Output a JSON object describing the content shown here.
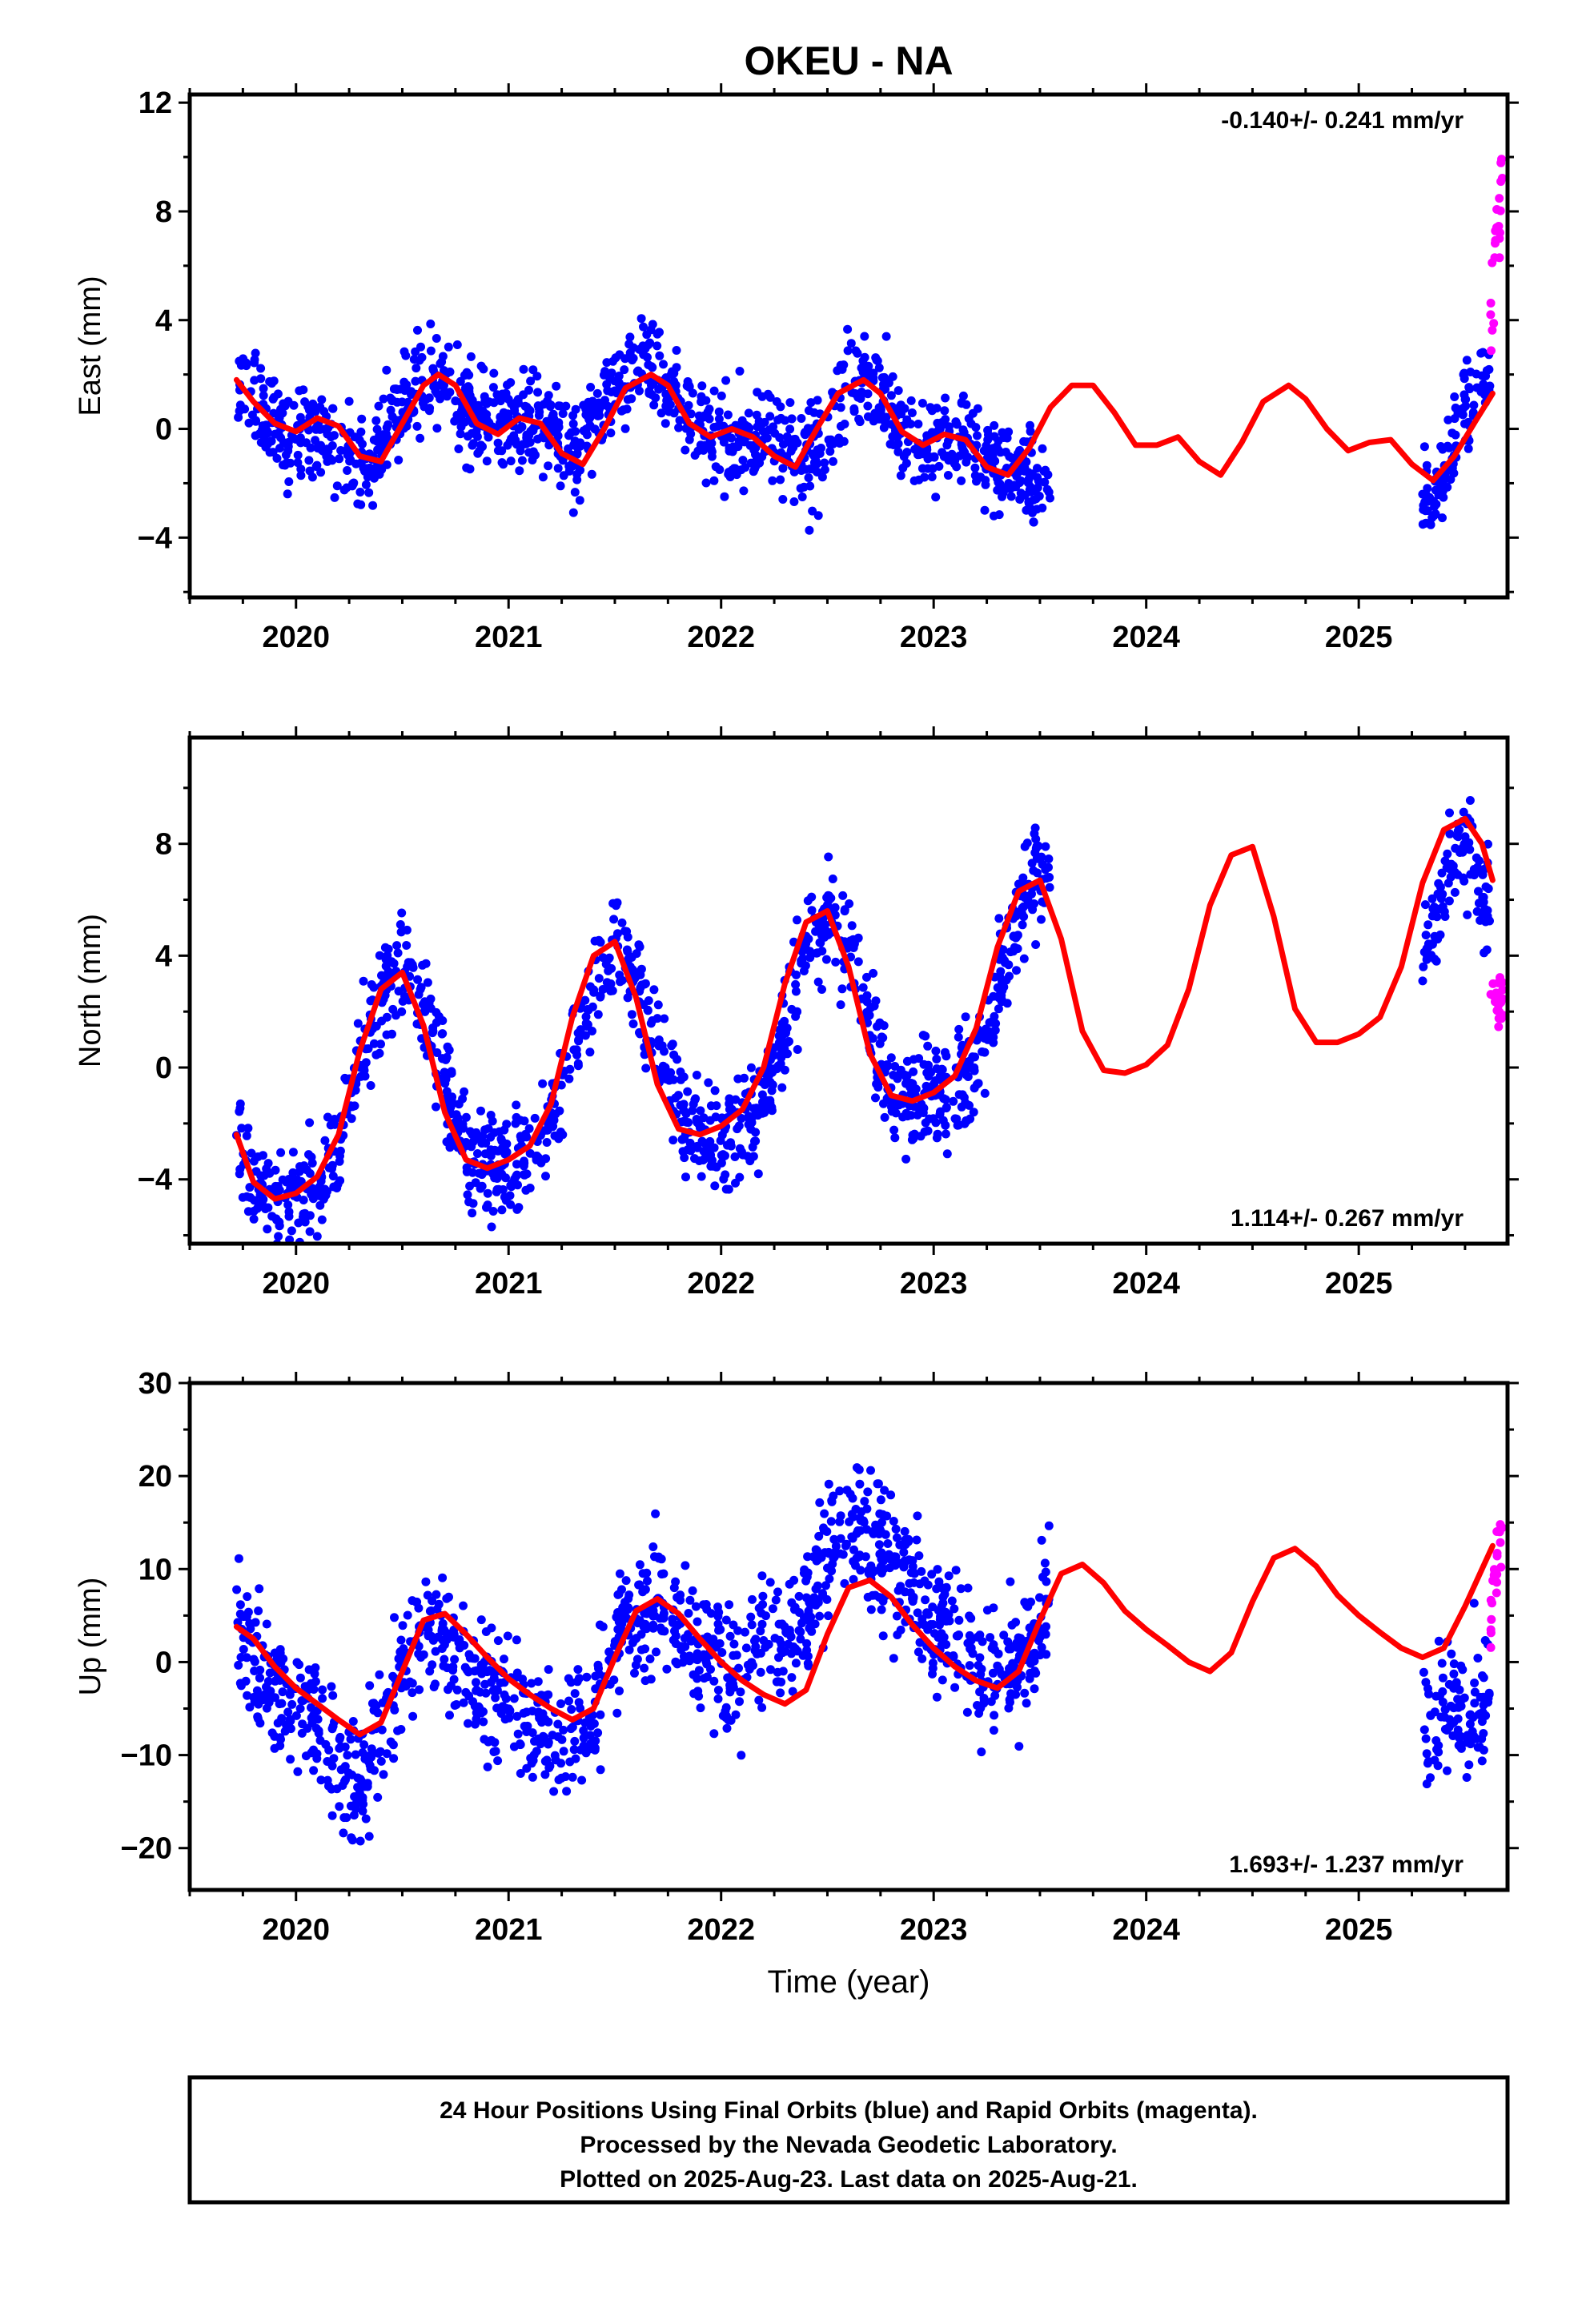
{
  "title": "OKEU - NA",
  "colors": {
    "final": "#0000ff",
    "rapid": "#ff00ff",
    "model": "#ff0000",
    "axis": "#000000"
  },
  "xlabel": "Time (year)",
  "footer": {
    "line1": "24 Hour Positions Using Final Orbits (blue) and Rapid Orbits (magenta).",
    "line2": "Processed by the Nevada Geodetic Laboratory.",
    "line3": "Plotted on 2025-Aug-23. Last data on 2025-Aug-21."
  },
  "chart_data": [
    {
      "type": "scatter",
      "ylabel": "East (mm)",
      "rate": "-0.140+/- 0.241 mm/yr",
      "rate_position": "top-right",
      "xlim": [
        2019.5,
        2025.7
      ],
      "ylim": [
        -6.2,
        12.3
      ],
      "xticks": [
        2020,
        2021,
        2022,
        2023,
        2024,
        2025
      ],
      "yticks": [
        -4,
        0,
        4,
        8,
        12
      ],
      "grid": false,
      "final_segments": [
        [
          2019.72,
          2023.55
        ],
        [
          2025.3,
          2025.62
        ]
      ],
      "gap": [
        2023.55,
        2025.3
      ],
      "rapid_x": [
        2025.62,
        2025.68
      ],
      "series": [
        {
          "key": "final",
          "x": [
            2019.72,
            2019.8,
            2019.88,
            2019.96,
            2020.04,
            2020.12,
            2020.2,
            2020.28,
            2020.36,
            2020.44,
            2020.52,
            2020.6,
            2020.68,
            2020.76,
            2020.84,
            2020.92,
            2021.0,
            2021.08,
            2021.16,
            2021.24,
            2021.32,
            2021.4,
            2021.48,
            2021.56,
            2021.64,
            2021.72,
            2021.8,
            2021.88,
            2021.96,
            2022.04,
            2022.12,
            2022.2,
            2022.28,
            2022.36,
            2022.44,
            2022.52,
            2022.6,
            2022.68,
            2022.76,
            2022.84,
            2022.92,
            2023.0,
            2023.08,
            2023.16,
            2023.24,
            2023.32,
            2023.4,
            2023.48,
            2023.55,
            2025.3,
            2025.35,
            2025.4,
            2025.45,
            2025.5,
            2025.55,
            2025.6
          ],
          "values": [
            1.5,
            1.0,
            0.0,
            -0.5,
            0.2,
            -0.4,
            -1.0,
            -1.0,
            -1.3,
            0.5,
            1.2,
            1.7,
            1.8,
            1.0,
            0.5,
            0.4,
            0.2,
            0.3,
            0.3,
            -0.4,
            -1.0,
            0.5,
            1.0,
            1.8,
            2.5,
            1.8,
            0.9,
            0.3,
            -0.2,
            -0.4,
            -0.4,
            -0.3,
            -0.2,
            -1.0,
            -1.3,
            0.2,
            1.7,
            2.2,
            1.4,
            -0.2,
            -0.8,
            -0.5,
            -0.3,
            -0.5,
            -1.3,
            -1.5,
            -1.5,
            -2.0,
            -2.5,
            -2.5,
            -3.0,
            -1.5,
            -0.5,
            0.8,
            1.2,
            2.0
          ],
          "spread": 1.2
        },
        {
          "key": "rapid",
          "x": [
            2025.62,
            2025.64,
            2025.66,
            2025.68
          ],
          "values": [
            4.0,
            6.0,
            7.5,
            9.5
          ],
          "spread": 1.2
        },
        {
          "key": "model",
          "x": [
            2019.72,
            2019.8,
            2019.9,
            2020.0,
            2020.1,
            2020.2,
            2020.3,
            2020.4,
            2020.5,
            2020.6,
            2020.67,
            2020.75,
            2020.85,
            2020.95,
            2021.05,
            2021.15,
            2021.25,
            2021.35,
            2021.45,
            2021.55,
            2021.67,
            2021.75,
            2021.85,
            2021.95,
            2022.05,
            2022.15,
            2022.25,
            2022.35,
            2022.45,
            2022.55,
            2022.67,
            2022.75,
            2022.85,
            2022.95,
            2023.05,
            2023.15,
            2023.25,
            2023.35,
            2023.45,
            2023.55,
            2023.65,
            2023.75,
            2023.85,
            2023.95,
            2024.05,
            2024.15,
            2024.25,
            2024.35,
            2024.45,
            2024.55,
            2024.67,
            2024.75,
            2024.85,
            2024.95,
            2025.05,
            2025.15,
            2025.25,
            2025.35,
            2025.45,
            2025.55,
            2025.63
          ],
          "values": [
            1.8,
            1.0,
            0.2,
            -0.1,
            0.4,
            0.1,
            -1.0,
            -1.2,
            0.2,
            1.6,
            2.0,
            1.6,
            0.2,
            -0.2,
            0.4,
            0.2,
            -0.9,
            -1.3,
            0.0,
            1.5,
            2.0,
            1.6,
            0.2,
            -0.3,
            0.0,
            -0.3,
            -1.0,
            -1.4,
            0.0,
            1.3,
            1.8,
            1.3,
            -0.1,
            -0.6,
            -0.2,
            -0.4,
            -1.4,
            -1.7,
            -0.7,
            0.8,
            1.6,
            1.6,
            0.6,
            -0.6,
            -0.6,
            -0.3,
            -1.2,
            -1.7,
            -0.5,
            1.0,
            1.6,
            1.1,
            0.0,
            -0.8,
            -0.5,
            -0.4,
            -1.3,
            -1.9,
            -1.0,
            0.3,
            1.3
          ]
        }
      ]
    },
    {
      "type": "scatter",
      "ylabel": "North (mm)",
      "rate": "1.114+/- 0.267 mm/yr",
      "rate_position": "bottom-right",
      "xlim": [
        2019.5,
        2025.7
      ],
      "ylim": [
        -6.3,
        11.8
      ],
      "xticks": [
        2020,
        2021,
        2022,
        2023,
        2024,
        2025
      ],
      "yticks": [
        -4,
        0,
        4,
        8
      ],
      "grid": false,
      "final_segments": [
        [
          2019.72,
          2023.55
        ],
        [
          2025.3,
          2025.62
        ]
      ],
      "gap": [
        2023.55,
        2025.3
      ],
      "rapid_x": [
        2025.62,
        2025.68
      ],
      "series": [
        {
          "key": "final",
          "x": [
            2019.72,
            2019.8,
            2019.9,
            2020.0,
            2020.1,
            2020.2,
            2020.3,
            2020.4,
            2020.5,
            2020.6,
            2020.7,
            2020.8,
            2020.9,
            2021.0,
            2021.1,
            2021.2,
            2021.3,
            2021.4,
            2021.5,
            2021.6,
            2021.7,
            2021.8,
            2021.9,
            2022.0,
            2022.1,
            2022.2,
            2022.3,
            2022.4,
            2022.5,
            2022.6,
            2022.7,
            2022.8,
            2022.9,
            2023.0,
            2023.1,
            2023.2,
            2023.3,
            2023.4,
            2023.5,
            2023.55,
            2025.3,
            2025.35,
            2025.4,
            2025.45,
            2025.5,
            2025.55,
            2025.6
          ],
          "values": [
            -2.2,
            -3.8,
            -4.6,
            -4.5,
            -4.0,
            -2.8,
            0.2,
            2.5,
            3.6,
            2.3,
            -0.5,
            -2.8,
            -3.6,
            -3.5,
            -3.2,
            -2.0,
            0.5,
            3.0,
            4.3,
            3.3,
            0.8,
            -1.5,
            -2.5,
            -2.6,
            -2.3,
            -1.5,
            1.5,
            4.5,
            5.6,
            4.2,
            1.5,
            -0.8,
            -1.3,
            -1.0,
            -0.8,
            0.2,
            2.5,
            5.5,
            7.0,
            6.8,
            4.0,
            5.0,
            6.5,
            7.5,
            8.0,
            7.0,
            6.0
          ],
          "spread": 1.3
        },
        {
          "key": "rapid",
          "x": [
            2025.62,
            2025.64,
            2025.66,
            2025.68
          ],
          "values": [
            2.8,
            2.2,
            2.0,
            2.5
          ],
          "spread": 0.6
        },
        {
          "key": "model",
          "x": [
            2019.72,
            2019.8,
            2019.9,
            2020.0,
            2020.1,
            2020.2,
            2020.3,
            2020.4,
            2020.5,
            2020.6,
            2020.7,
            2020.8,
            2020.9,
            2021.0,
            2021.1,
            2021.2,
            2021.3,
            2021.4,
            2021.5,
            2021.6,
            2021.7,
            2021.8,
            2021.9,
            2022.0,
            2022.1,
            2022.2,
            2022.3,
            2022.4,
            2022.5,
            2022.6,
            2022.7,
            2022.8,
            2022.9,
            2023.0,
            2023.1,
            2023.2,
            2023.3,
            2023.4,
            2023.5,
            2023.6,
            2023.7,
            2023.8,
            2023.9,
            2024.0,
            2024.1,
            2024.2,
            2024.3,
            2024.4,
            2024.5,
            2024.6,
            2024.7,
            2024.8,
            2024.9,
            2025.0,
            2025.1,
            2025.2,
            2025.3,
            2025.4,
            2025.5,
            2025.58,
            2025.63
          ],
          "values": [
            -2.4,
            -4.1,
            -4.7,
            -4.5,
            -3.9,
            -2.4,
            0.6,
            2.8,
            3.4,
            1.5,
            -1.6,
            -3.3,
            -3.6,
            -3.3,
            -2.8,
            -1.3,
            1.8,
            4.0,
            4.5,
            2.5,
            -0.6,
            -2.2,
            -2.4,
            -2.1,
            -1.5,
            0.0,
            3.0,
            5.2,
            5.6,
            3.6,
            0.5,
            -1.0,
            -1.2,
            -0.9,
            -0.3,
            1.4,
            4.3,
            6.3,
            6.7,
            4.6,
            1.3,
            -0.1,
            -0.2,
            0.1,
            0.8,
            2.8,
            5.8,
            7.6,
            7.9,
            5.4,
            2.1,
            0.9,
            0.9,
            1.2,
            1.8,
            3.6,
            6.6,
            8.5,
            8.9,
            8.0,
            6.7
          ]
        }
      ]
    },
    {
      "type": "scatter",
      "ylabel": "Up (mm)",
      "rate": "1.693+/- 1.237 mm/yr",
      "rate_position": "bottom-right",
      "xlim": [
        2019.5,
        2025.7
      ],
      "ylim": [
        -24.5,
        30
      ],
      "xticks": [
        2020,
        2021,
        2022,
        2023,
        2024,
        2025
      ],
      "yticks": [
        -20,
        -10,
        0,
        10,
        20,
        30
      ],
      "grid": false,
      "final_segments": [
        [
          2019.72,
          2023.55
        ],
        [
          2025.3,
          2025.62
        ]
      ],
      "gap": [
        2023.55,
        2025.3
      ],
      "rapid_x": [
        2025.62,
        2025.68
      ],
      "series": [
        {
          "key": "final",
          "x": [
            2019.72,
            2019.8,
            2019.9,
            2020.0,
            2020.1,
            2020.2,
            2020.3,
            2020.4,
            2020.5,
            2020.6,
            2020.7,
            2020.8,
            2020.9,
            2021.0,
            2021.1,
            2021.2,
            2021.3,
            2021.4,
            2021.5,
            2021.6,
            2021.7,
            2021.8,
            2021.9,
            2022.0,
            2022.1,
            2022.2,
            2022.3,
            2022.4,
            2022.5,
            2022.6,
            2022.7,
            2022.8,
            2022.9,
            2023.0,
            2023.1,
            2023.2,
            2023.3,
            2023.4,
            2023.5,
            2023.55,
            2025.3,
            2025.35,
            2025.4,
            2025.45,
            2025.5,
            2025.55,
            2025.6
          ],
          "values": [
            5.0,
            0.0,
            -2.5,
            -4.0,
            -6.0,
            -10.0,
            -13.0,
            -7.0,
            0.0,
            3.0,
            2.5,
            -1.0,
            -3.0,
            -4.0,
            -6.0,
            -9.0,
            -8.0,
            -6.0,
            2.0,
            5.0,
            6.0,
            3.0,
            1.0,
            -1.0,
            -2.0,
            3.0,
            1.0,
            5.0,
            12.0,
            14.0,
            13.0,
            11.0,
            8.0,
            5.0,
            2.0,
            -1.0,
            -2.0,
            0.0,
            5.0,
            8.0,
            -8.0,
            -7.0,
            -6.0,
            -5.0,
            -6.0,
            -4.0,
            -3.0
          ],
          "spread": 5.0
        },
        {
          "key": "rapid",
          "x": [
            2025.62,
            2025.64,
            2025.66,
            2025.68
          ],
          "values": [
            5.0,
            9.0,
            13.0,
            16.0
          ],
          "spread": 3.0
        },
        {
          "key": "model",
          "x": [
            2019.72,
            2019.8,
            2019.9,
            2020.0,
            2020.1,
            2020.2,
            2020.3,
            2020.4,
            2020.5,
            2020.6,
            2020.7,
            2020.8,
            2020.9,
            2021.0,
            2021.1,
            2021.2,
            2021.3,
            2021.4,
            2021.5,
            2021.6,
            2021.7,
            2021.8,
            2021.9,
            2022.0,
            2022.1,
            2022.2,
            2022.3,
            2022.4,
            2022.5,
            2022.6,
            2022.7,
            2022.8,
            2022.9,
            2023.0,
            2023.1,
            2023.2,
            2023.3,
            2023.4,
            2023.5,
            2023.6,
            2023.7,
            2023.8,
            2023.9,
            2024.0,
            2024.1,
            2024.2,
            2024.3,
            2024.4,
            2024.5,
            2024.6,
            2024.7,
            2024.8,
            2024.9,
            2025.0,
            2025.1,
            2025.2,
            2025.3,
            2025.4,
            2025.5,
            2025.58,
            2025.63
          ],
          "values": [
            3.8,
            2.5,
            -0.5,
            -2.8,
            -4.5,
            -6.2,
            -7.8,
            -6.5,
            -1.0,
            4.5,
            5.2,
            3.0,
            0.5,
            -1.8,
            -3.5,
            -5.0,
            -6.2,
            -5.0,
            0.5,
            5.5,
            6.8,
            5.2,
            2.5,
            0.0,
            -2.0,
            -3.5,
            -4.5,
            -3.0,
            3.0,
            8.0,
            8.8,
            7.0,
            4.0,
            1.5,
            -0.5,
            -2.0,
            -2.8,
            -1.0,
            4.5,
            9.5,
            10.5,
            8.5,
            5.5,
            3.5,
            1.8,
            0.0,
            -1.0,
            1.0,
            6.5,
            11.2,
            12.2,
            10.3,
            7.2,
            5.0,
            3.2,
            1.5,
            0.5,
            1.5,
            6.0,
            10.0,
            12.5
          ]
        }
      ]
    }
  ]
}
